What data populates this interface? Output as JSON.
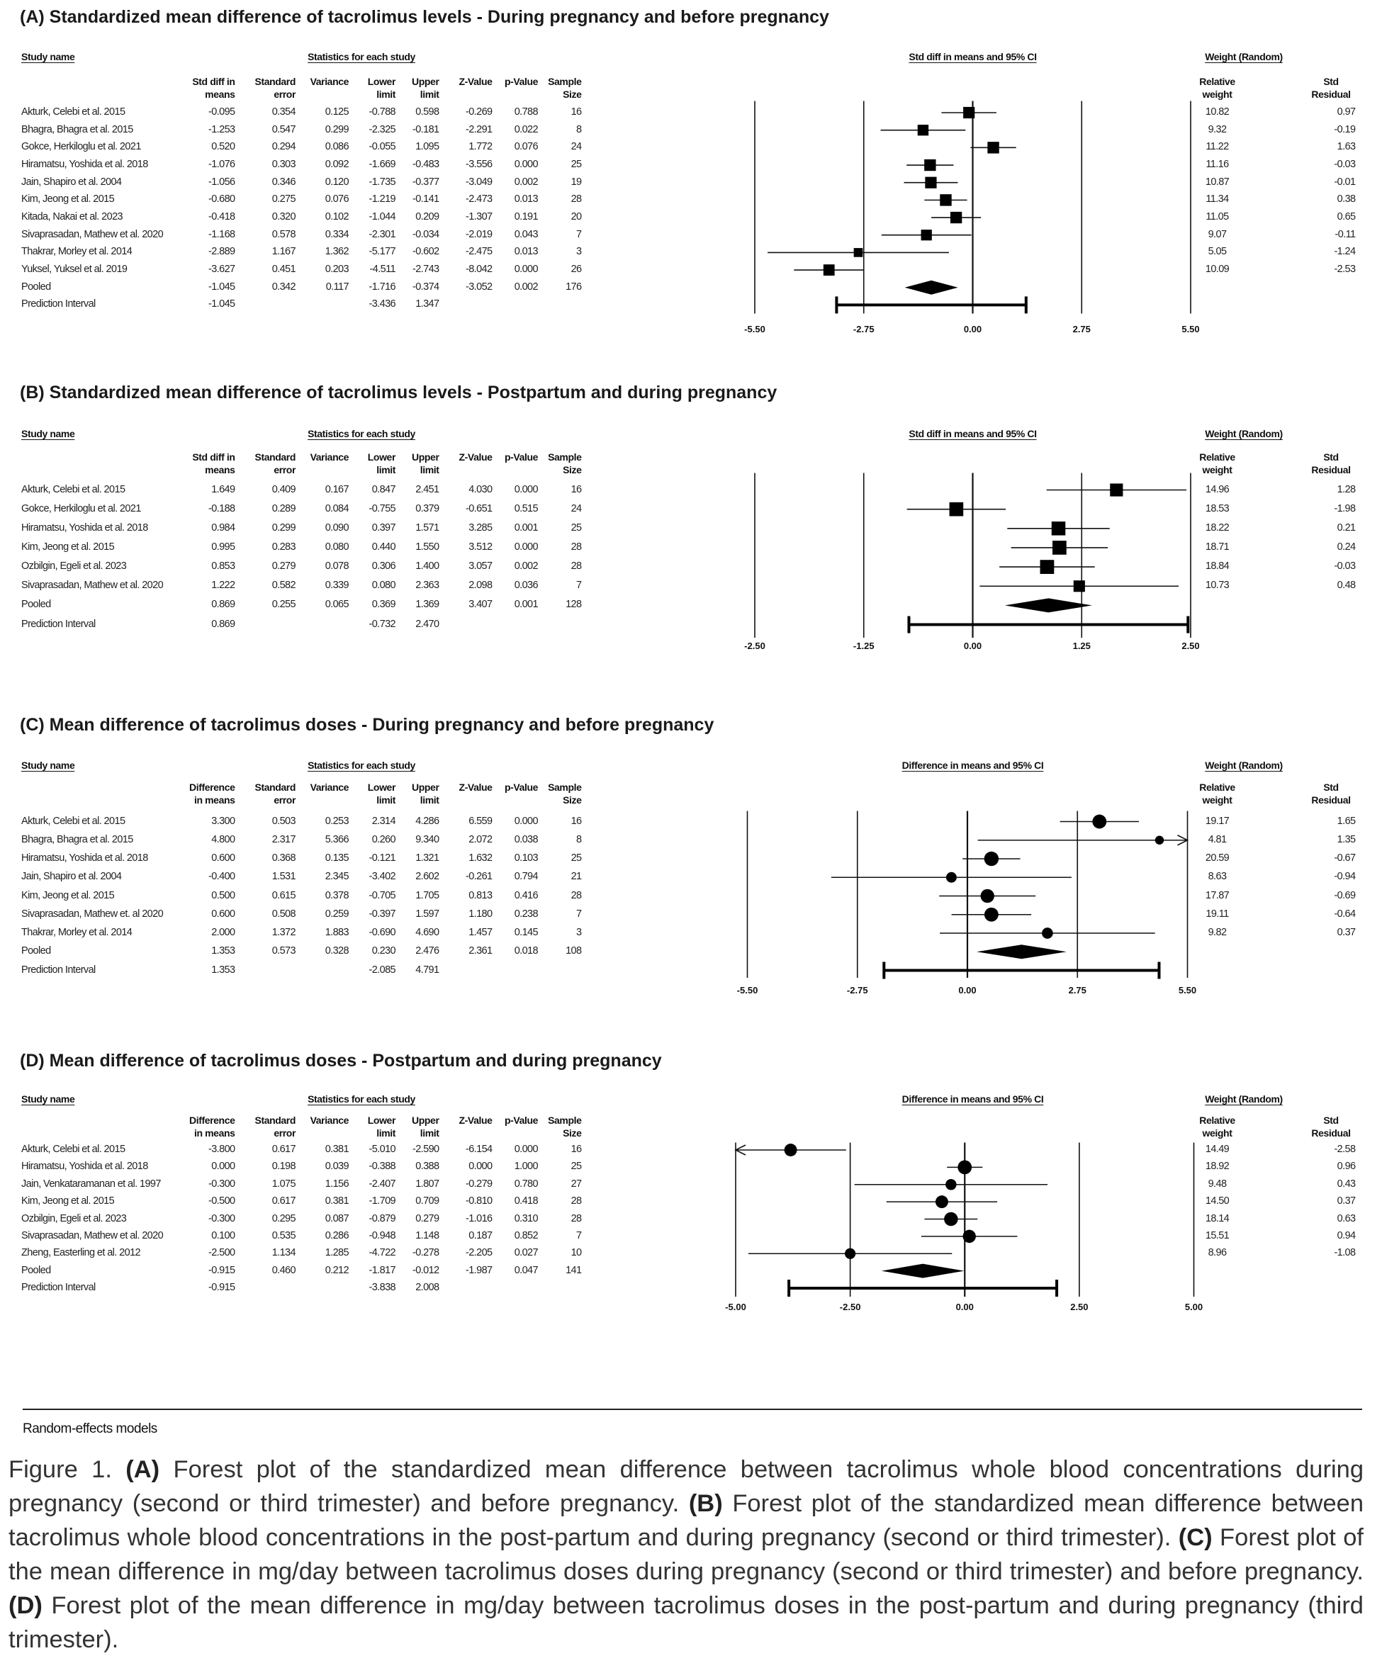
{
  "common": {
    "study_name_header": "Study name",
    "stats_header": "Statistics for each study",
    "weight_header": "Weight (Random)",
    "col_se": "Standard error",
    "col_var": "Variance",
    "col_lo": "Lower limit",
    "col_hi": "Upper limit",
    "col_z": "Z-Value",
    "col_p": "p-Value",
    "col_n": "Sample Size",
    "col_weight": "Relative weight",
    "col_resid": "Std Residual"
  },
  "footer_note": "Random-effects models",
  "caption": [
    {
      "t": "Figure 1. ",
      "b": false
    },
    {
      "t": "(A)",
      "b": true
    },
    {
      "t": " Forest plot of the standardized mean difference between tacrolimus whole blood concentrations during pregnancy (second or third trimester) and before pregnancy. ",
      "b": false
    },
    {
      "t": "(B)",
      "b": true
    },
    {
      "t": " Forest plot of the standardized mean difference between tacrolimus whole blood concentrations in the post-partum and during pregnancy (second or third trimester). ",
      "b": false
    },
    {
      "t": "(C)",
      "b": true
    },
    {
      "t": " Forest plot of the mean difference in mg/day between tacrolimus doses during pregnancy (second or third trimester) and before pregnancy. ",
      "b": false
    },
    {
      "t": "(D)",
      "b": true
    },
    {
      "t": " Forest plot of the mean difference in mg/day between tacrolimus doses in the post-partum and during pregnancy (third trimester).",
      "b": false
    }
  ],
  "chart_data": [
    {
      "type": "forest",
      "title": "(A) Standardized mean difference of tacrolimus levels - During pregnancy and before pregnancy",
      "effect_label": "Std diff in means",
      "plot_label": "Std diff in means and 95% CI",
      "marker": "square",
      "xlim": [
        -5.5,
        5.5
      ],
      "ticks": [
        "-5.50",
        "-2.75",
        "0.00",
        "2.75",
        "5.50"
      ],
      "tick_values": [
        -5.5,
        -2.75,
        0,
        2.75,
        5.5
      ],
      "rows": [
        {
          "name": "Akturk, Celebi et al. 2015",
          "est": "-0.095",
          "se": "0.354",
          "var": "0.125",
          "lo": "-0.788",
          "hi": "0.598",
          "z": "-0.269",
          "p": "0.788",
          "n": "16",
          "w": "10.82",
          "res": "0.97"
        },
        {
          "name": "Bhagra, Bhagra et al. 2015",
          "est": "-1.253",
          "se": "0.547",
          "var": "0.299",
          "lo": "-2.325",
          "hi": "-0.181",
          "z": "-2.291",
          "p": "0.022",
          "n": "8",
          "w": "9.32",
          "res": "-0.19"
        },
        {
          "name": "Gokce, Herkiloglu et al. 2021",
          "est": "0.520",
          "se": "0.294",
          "var": "0.086",
          "lo": "-0.055",
          "hi": "1.095",
          "z": "1.772",
          "p": "0.076",
          "n": "24",
          "w": "11.22",
          "res": "1.63"
        },
        {
          "name": "Hiramatsu, Yoshida et al. 2018",
          "est": "-1.076",
          "se": "0.303",
          "var": "0.092",
          "lo": "-1.669",
          "hi": "-0.483",
          "z": "-3.556",
          "p": "0.000",
          "n": "25",
          "w": "11.16",
          "res": "-0.03"
        },
        {
          "name": "Jain, Shapiro et al. 2004",
          "est": "-1.056",
          "se": "0.346",
          "var": "0.120",
          "lo": "-1.735",
          "hi": "-0.377",
          "z": "-3.049",
          "p": "0.002",
          "n": "19",
          "w": "10.87",
          "res": "-0.01"
        },
        {
          "name": "Kim, Jeong et al. 2015",
          "est": "-0.680",
          "se": "0.275",
          "var": "0.076",
          "lo": "-1.219",
          "hi": "-0.141",
          "z": "-2.473",
          "p": "0.013",
          "n": "28",
          "w": "11.34",
          "res": "0.38"
        },
        {
          "name": "Kitada, Nakai et al. 2023",
          "est": "-0.418",
          "se": "0.320",
          "var": "0.102",
          "lo": "-1.044",
          "hi": "0.209",
          "z": "-1.307",
          "p": "0.191",
          "n": "20",
          "w": "11.05",
          "res": "0.65"
        },
        {
          "name": "Sivaprasadan, Mathew et al. 2020",
          "est": "-1.168",
          "se": "0.578",
          "var": "0.334",
          "lo": "-2.301",
          "hi": "-0.034",
          "z": "-2.019",
          "p": "0.043",
          "n": "7",
          "w": "9.07",
          "res": "-0.11"
        },
        {
          "name": "Thakrar, Morley et al. 2014",
          "est": "-2.889",
          "se": "1.167",
          "var": "1.362",
          "lo": "-5.177",
          "hi": "-0.602",
          "z": "-2.475",
          "p": "0.013",
          "n": "3",
          "w": "5.05",
          "res": "-1.24"
        },
        {
          "name": "Yuksel, Yuksel et al. 2019",
          "est": "-3.627",
          "se": "0.451",
          "var": "0.203",
          "lo": "-4.511",
          "hi": "-2.743",
          "z": "-8.042",
          "p": "0.000",
          "n": "26",
          "w": "10.09",
          "res": "-2.53"
        }
      ],
      "pooled": {
        "name": "Pooled",
        "est": "-1.045",
        "se": "0.342",
        "var": "0.117",
        "lo": "-1.716",
        "hi": "-0.374",
        "z": "-3.052",
        "p": "0.002",
        "n": "176"
      },
      "prediction": {
        "name": "Prediction Interval",
        "est": "-1.045",
        "lo": "-3.436",
        "hi": "1.347"
      }
    },
    {
      "type": "forest",
      "title": "(B) Standardized mean difference of tacrolimus levels - Postpartum and during pregnancy",
      "effect_label": "Std diff in means",
      "plot_label": "Std diff in means and 95% CI",
      "marker": "square",
      "xlim": [
        -2.5,
        2.5
      ],
      "ticks": [
        "-2.50",
        "-1.25",
        "0.00",
        "1.25",
        "2.50"
      ],
      "tick_values": [
        -2.5,
        -1.25,
        0,
        1.25,
        2.5
      ],
      "rows": [
        {
          "name": "Akturk, Celebi et al. 2015",
          "est": "1.649",
          "se": "0.409",
          "var": "0.167",
          "lo": "0.847",
          "hi": "2.451",
          "z": "4.030",
          "p": "0.000",
          "n": "16",
          "w": "14.96",
          "res": "1.28"
        },
        {
          "name": "Gokce, Herkiloglu et al. 2021",
          "est": "-0.188",
          "se": "0.289",
          "var": "0.084",
          "lo": "-0.755",
          "hi": "0.379",
          "z": "-0.651",
          "p": "0.515",
          "n": "24",
          "w": "18.53",
          "res": "-1.98"
        },
        {
          "name": "Hiramatsu, Yoshida et al. 2018",
          "est": "0.984",
          "se": "0.299",
          "var": "0.090",
          "lo": "0.397",
          "hi": "1.571",
          "z": "3.285",
          "p": "0.001",
          "n": "25",
          "w": "18.22",
          "res": "0.21"
        },
        {
          "name": "Kim, Jeong et al. 2015",
          "est": "0.995",
          "se": "0.283",
          "var": "0.080",
          "lo": "0.440",
          "hi": "1.550",
          "z": "3.512",
          "p": "0.000",
          "n": "28",
          "w": "18.71",
          "res": "0.24"
        },
        {
          "name": "Ozbilgin, Egeli et al. 2023",
          "est": "0.853",
          "se": "0.279",
          "var": "0.078",
          "lo": "0.306",
          "hi": "1.400",
          "z": "3.057",
          "p": "0.002",
          "n": "28",
          "w": "18.84",
          "res": "-0.03"
        },
        {
          "name": "Sivaprasadan, Mathew et al. 2020",
          "est": "1.222",
          "se": "0.582",
          "var": "0.339",
          "lo": "0.080",
          "hi": "2.363",
          "z": "2.098",
          "p": "0.036",
          "n": "7",
          "w": "10.73",
          "res": "0.48"
        }
      ],
      "pooled": {
        "name": "Pooled",
        "est": "0.869",
        "se": "0.255",
        "var": "0.065",
        "lo": "0.369",
        "hi": "1.369",
        "z": "3.407",
        "p": "0.001",
        "n": "128"
      },
      "prediction": {
        "name": "Prediction Interval",
        "est": "0.869",
        "lo": "-0.732",
        "hi": "2.470"
      }
    },
    {
      "type": "forest",
      "title": "(C) Mean difference of tacrolimus doses - During pregnancy and before pregnancy",
      "effect_label": "Difference in means",
      "plot_label": "Difference in means and 95% CI",
      "marker": "circle",
      "xlim": [
        -5.5,
        5.5
      ],
      "ticks": [
        "-5.50",
        "-2.75",
        "0.00",
        "2.75",
        "5.50"
      ],
      "tick_values": [
        -5.5,
        -2.75,
        0,
        2.75,
        5.5
      ],
      "rows": [
        {
          "name": "Akturk, Celebi et al. 2015",
          "est": "3.300",
          "se": "0.503",
          "var": "0.253",
          "lo": "2.314",
          "hi": "4.286",
          "z": "6.559",
          "p": "0.000",
          "n": "16",
          "w": "19.17",
          "res": "1.65"
        },
        {
          "name": "Bhagra, Bhagra et al. 2015",
          "est": "4.800",
          "se": "2.317",
          "var": "5.366",
          "lo": "0.260",
          "hi": "9.340",
          "z": "2.072",
          "p": "0.038",
          "n": "8",
          "w": "4.81",
          "res": "1.35"
        },
        {
          "name": "Hiramatsu, Yoshida et al. 2018",
          "est": "0.600",
          "se": "0.368",
          "var": "0.135",
          "lo": "-0.121",
          "hi": "1.321",
          "z": "1.632",
          "p": "0.103",
          "n": "25",
          "w": "20.59",
          "res": "-0.67"
        },
        {
          "name": "Jain, Shapiro et al. 2004",
          "est": "-0.400",
          "se": "1.531",
          "var": "2.345",
          "lo": "-3.402",
          "hi": "2.602",
          "z": "-0.261",
          "p": "0.794",
          "n": "21",
          "w": "8.63",
          "res": "-0.94"
        },
        {
          "name": "Kim, Jeong et al. 2015",
          "est": "0.500",
          "se": "0.615",
          "var": "0.378",
          "lo": "-0.705",
          "hi": "1.705",
          "z": "0.813",
          "p": "0.416",
          "n": "28",
          "w": "17.87",
          "res": "-0.69"
        },
        {
          "name": "Sivaprasadan, Mathew et. al 2020",
          "est": "0.600",
          "se": "0.508",
          "var": "0.259",
          "lo": "-0.397",
          "hi": "1.597",
          "z": "1.180",
          "p": "0.238",
          "n": "7",
          "w": "19.11",
          "res": "-0.64"
        },
        {
          "name": "Thakrar, Morley et al. 2014",
          "est": "2.000",
          "se": "1.372",
          "var": "1.883",
          "lo": "-0.690",
          "hi": "4.690",
          "z": "1.457",
          "p": "0.145",
          "n": "3",
          "w": "9.82",
          "res": "0.37"
        }
      ],
      "pooled": {
        "name": "Pooled",
        "est": "1.353",
        "se": "0.573",
        "var": "0.328",
        "lo": "0.230",
        "hi": "2.476",
        "z": "2.361",
        "p": "0.018",
        "n": "108"
      },
      "prediction": {
        "name": "Prediction Interval",
        "est": "1.353",
        "lo": "-2.085",
        "hi": "4.791"
      }
    },
    {
      "type": "forest",
      "title": "(D) Mean difference of tacrolimus doses - Postpartum and during pregnancy",
      "effect_label": "Difference in means",
      "plot_label": "Difference in means and 95% CI",
      "marker": "circle",
      "xlim": [
        -5,
        5
      ],
      "ticks": [
        "-5.00",
        "-2.50",
        "0.00",
        "2.50",
        "5.00"
      ],
      "tick_values": [
        -5,
        -2.5,
        0,
        2.5,
        5
      ],
      "rows": [
        {
          "name": "Akturk, Celebi et al. 2015",
          "est": "-3.800",
          "se": "0.617",
          "var": "0.381",
          "lo": "-5.010",
          "hi": "-2.590",
          "z": "-6.154",
          "p": "0.000",
          "n": "16",
          "w": "14.49",
          "res": "-2.58"
        },
        {
          "name": "Hiramatsu, Yoshida et al. 2018",
          "est": "0.000",
          "se": "0.198",
          "var": "0.039",
          "lo": "-0.388",
          "hi": "0.388",
          "z": "0.000",
          "p": "1.000",
          "n": "25",
          "w": "18.92",
          "res": "0.96"
        },
        {
          "name": "Jain, Venkataramanan et al. 1997",
          "est": "-0.300",
          "se": "1.075",
          "var": "1.156",
          "lo": "-2.407",
          "hi": "1.807",
          "z": "-0.279",
          "p": "0.780",
          "n": "27",
          "w": "9.48",
          "res": "0.43"
        },
        {
          "name": "Kim, Jeong et al. 2015",
          "est": "-0.500",
          "se": "0.617",
          "var": "0.381",
          "lo": "-1.709",
          "hi": "0.709",
          "z": "-0.810",
          "p": "0.418",
          "n": "28",
          "w": "14.50",
          "res": "0.37"
        },
        {
          "name": "Ozbilgin, Egeli et al. 2023",
          "est": "-0.300",
          "se": "0.295",
          "var": "0.087",
          "lo": "-0.879",
          "hi": "0.279",
          "z": "-1.016",
          "p": "0.310",
          "n": "28",
          "w": "18.14",
          "res": "0.63"
        },
        {
          "name": "Sivaprasadan, Mathew et al. 2020",
          "est": "0.100",
          "se": "0.535",
          "var": "0.286",
          "lo": "-0.948",
          "hi": "1.148",
          "z": "0.187",
          "p": "0.852",
          "n": "7",
          "w": "15.51",
          "res": "0.94"
        },
        {
          "name": "Zheng, Easterling et al. 2012",
          "est": "-2.500",
          "se": "1.134",
          "var": "1.285",
          "lo": "-4.722",
          "hi": "-0.278",
          "z": "-2.205",
          "p": "0.027",
          "n": "10",
          "w": "8.96",
          "res": "-1.08"
        }
      ],
      "pooled": {
        "name": "Pooled",
        "est": "-0.915",
        "se": "0.460",
        "var": "0.212",
        "lo": "-1.817",
        "hi": "-0.012",
        "z": "-1.987",
        "p": "0.047",
        "n": "141"
      },
      "prediction": {
        "name": "Prediction Interval",
        "est": "-0.915",
        "lo": "-3.838",
        "hi": "2.008"
      }
    }
  ]
}
